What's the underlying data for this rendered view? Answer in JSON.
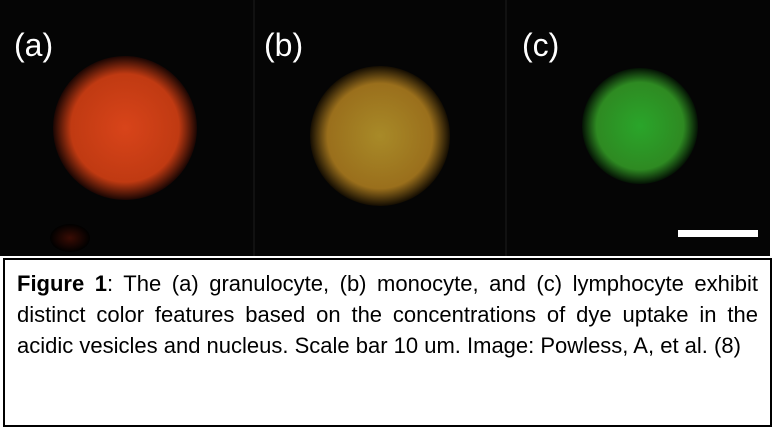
{
  "panels": [
    {
      "label": "(a)"
    },
    {
      "label": "(b)"
    },
    {
      "label": "(c)"
    }
  ],
  "caption": {
    "label": "Figure 1",
    "text": ": The (a) granulocyte, (b) monocyte, and (c) lymphocyte exhibit distinct color features based on the concentrations of dye uptake in the acidic vesicles and nucleus. Scale bar 10 um. Image: Powless, A, et al. (8)"
  }
}
